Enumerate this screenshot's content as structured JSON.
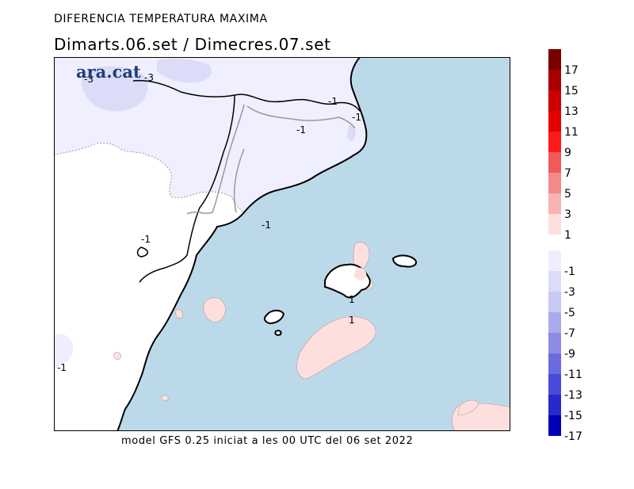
{
  "header": {
    "title": "DIFERENCIA TEMPERATURA MAXIMA",
    "subtitle": "Dimarts.06.set / Dimecres.07.set"
  },
  "footer": {
    "model_line": "model GFS 0.25 iniciat a les 00 UTC del 06 set 2022"
  },
  "logo": {
    "text": "ara.cat",
    "color": "#1e3f79"
  },
  "map": {
    "sea_color": "#bcd9ea",
    "land_color": "#ffffff",
    "contour_labels": [
      "-3",
      "-3",
      "-1",
      "-1",
      "-1",
      "-1",
      "-1",
      "-1",
      "1",
      "1"
    ]
  },
  "legend": {
    "warm": [
      {
        "label": "17",
        "color": "#7a0000"
      },
      {
        "label": "15",
        "color": "#a80000"
      },
      {
        "label": "13",
        "color": "#cc0000"
      },
      {
        "label": "11",
        "color": "#e60000"
      },
      {
        "label": "9",
        "color": "#ff1a1a"
      },
      {
        "label": "7",
        "color": "#f25a5a"
      },
      {
        "label": "5",
        "color": "#f28a8a"
      },
      {
        "label": "3",
        "color": "#f7b3b3"
      },
      {
        "label": "1",
        "color": "#fde0de"
      }
    ],
    "cold": [
      {
        "label": "-1",
        "color": "#eeeeff"
      },
      {
        "label": "-3",
        "color": "#dcdcf8"
      },
      {
        "label": "-5",
        "color": "#c8c8f4"
      },
      {
        "label": "-7",
        "color": "#aaaaee"
      },
      {
        "label": "-9",
        "color": "#8c8ce6"
      },
      {
        "label": "-11",
        "color": "#6b6be0"
      },
      {
        "label": "-13",
        "color": "#4a4ad8"
      },
      {
        "label": "-15",
        "color": "#2828cc"
      },
      {
        "label": "-17",
        "color": "#0000b8"
      }
    ]
  }
}
